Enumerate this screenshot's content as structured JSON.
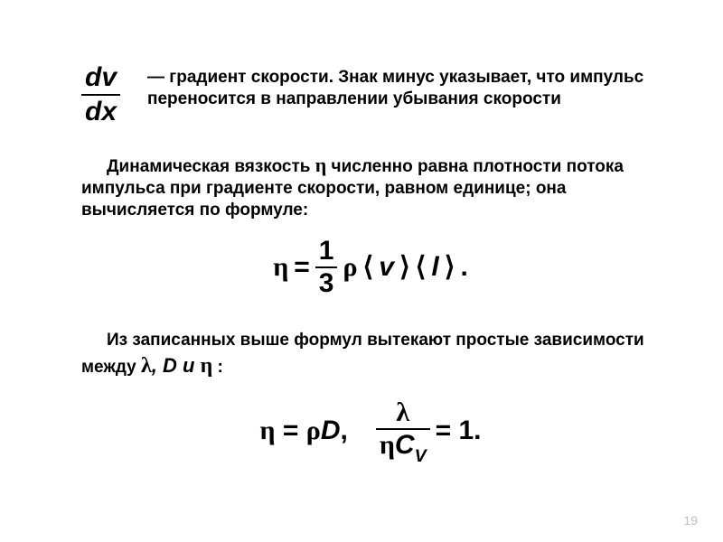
{
  "fraction1": {
    "num": "dv",
    "den": "dx"
  },
  "desc1": "— градиент скорости. Знак минус указывает, что импульс переносится в направлении убывания скорости",
  "para2_a": "Динамическая вязкость ",
  "para2_eta": "η",
  "para2_b": "   численно равна плотности потока импульса при градиенте скорости, равном единице; она вычисляется по формуле:",
  "eq1": {
    "eta": "η",
    "eq": "=",
    "frac_num": "1",
    "frac_den": "3",
    "rho": "ρ",
    "v": "v",
    "l": "l",
    "dot": "."
  },
  "para3_a": "Из записанных выше формул вытекают простые зависимости между ",
  "para3_lambda": "λ",
  "para3_mid": ", D  и ",
  "para3_eta": "η",
  "para3_end": "  :",
  "eq2": {
    "lhs": "η = ρD,",
    "frac_num": "λ",
    "frac_den_eta": "η",
    "frac_den_c": "C",
    "frac_den_sub": "V",
    "rhs": "= 1."
  },
  "pagenum": "19"
}
